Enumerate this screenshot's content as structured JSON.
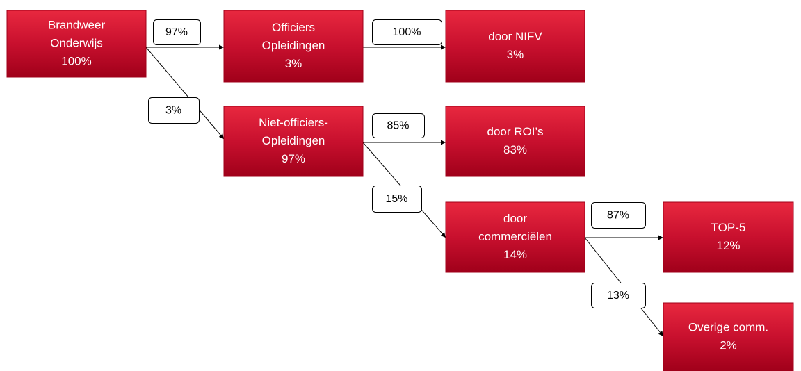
{
  "nodes": [
    {
      "lines": [
        "Brandweer",
        "Onderwijs",
        "100%"
      ]
    },
    {
      "lines": [
        "Officiers",
        "Opleidingen",
        "3%"
      ]
    },
    {
      "lines": [
        "door NIFV",
        "3%"
      ]
    },
    {
      "lines": [
        "Niet-officiers-",
        "Opleidingen",
        "97%"
      ]
    },
    {
      "lines": [
        "door ROI’s",
        "83%"
      ]
    },
    {
      "lines": [
        "door",
        "commerciëlen",
        "14%"
      ]
    },
    {
      "lines": [
        "TOP-5",
        "12%"
      ]
    },
    {
      "lines": [
        "Overige comm.",
        "2%"
      ]
    }
  ],
  "edges": [
    {
      "label": "97%"
    },
    {
      "label": "100%"
    },
    {
      "label": "3%"
    },
    {
      "label": "85%"
    },
    {
      "label": "15%"
    },
    {
      "label": "87%"
    },
    {
      "label": "13%"
    }
  ]
}
